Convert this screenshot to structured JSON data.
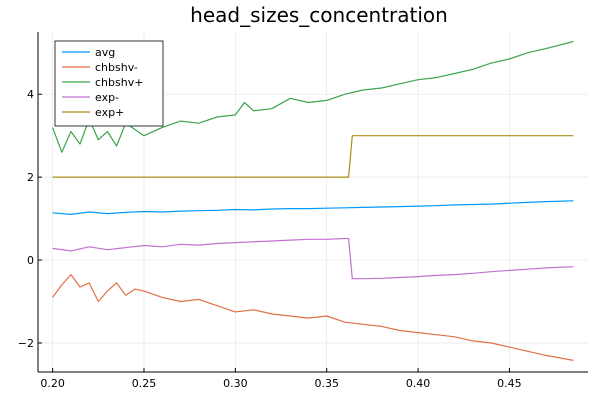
{
  "chart_data": {
    "type": "line",
    "title": "head_sizes_concentration",
    "xlabel": "",
    "ylabel": "",
    "xlim": [
      0.192,
      0.493
    ],
    "ylim": [
      -2.7,
      5.5
    ],
    "xticks": [
      0.2,
      0.25,
      0.3,
      0.35,
      0.4,
      0.45
    ],
    "xtick_labels": [
      "0.20",
      "0.25",
      "0.30",
      "0.35",
      "0.40",
      "0.45"
    ],
    "yticks": [
      -2,
      0,
      2,
      4
    ],
    "ytick_labels": [
      "−2",
      "0",
      "2",
      "4"
    ],
    "grid": true,
    "legend_position": "top-left",
    "series": [
      {
        "name": "avg",
        "color": "#009AFA",
        "x": [
          0.2,
          0.21,
          0.22,
          0.23,
          0.24,
          0.25,
          0.26,
          0.27,
          0.28,
          0.29,
          0.3,
          0.31,
          0.32,
          0.33,
          0.34,
          0.35,
          0.36,
          0.37,
          0.38,
          0.39,
          0.4,
          0.41,
          0.42,
          0.43,
          0.44,
          0.45,
          0.46,
          0.47,
          0.485
        ],
        "y": [
          1.14,
          1.1,
          1.16,
          1.12,
          1.15,
          1.17,
          1.16,
          1.18,
          1.19,
          1.2,
          1.22,
          1.21,
          1.23,
          1.24,
          1.24,
          1.25,
          1.26,
          1.27,
          1.28,
          1.29,
          1.3,
          1.31,
          1.33,
          1.34,
          1.35,
          1.37,
          1.39,
          1.41,
          1.43
        ]
      },
      {
        "name": "chbshv-",
        "color": "#E36F47",
        "x": [
          0.2,
          0.205,
          0.21,
          0.215,
          0.22,
          0.225,
          0.23,
          0.235,
          0.24,
          0.245,
          0.25,
          0.26,
          0.27,
          0.28,
          0.29,
          0.3,
          0.31,
          0.32,
          0.33,
          0.34,
          0.35,
          0.36,
          0.37,
          0.38,
          0.39,
          0.4,
          0.41,
          0.42,
          0.43,
          0.44,
          0.45,
          0.46,
          0.47,
          0.485
        ],
        "y": [
          -0.9,
          -0.6,
          -0.35,
          -0.65,
          -0.55,
          -1.0,
          -0.75,
          -0.55,
          -0.85,
          -0.7,
          -0.75,
          -0.9,
          -1.0,
          -0.95,
          -1.1,
          -1.25,
          -1.2,
          -1.3,
          -1.35,
          -1.4,
          -1.35,
          -1.5,
          -1.55,
          -1.6,
          -1.7,
          -1.75,
          -1.8,
          -1.85,
          -1.95,
          -2.0,
          -2.1,
          -2.2,
          -2.3,
          -2.42
        ]
      },
      {
        "name": "chbshv+",
        "color": "#3EA44E",
        "x": [
          0.2,
          0.205,
          0.21,
          0.215,
          0.22,
          0.225,
          0.23,
          0.235,
          0.24,
          0.25,
          0.26,
          0.27,
          0.28,
          0.29,
          0.3,
          0.305,
          0.31,
          0.32,
          0.33,
          0.34,
          0.35,
          0.36,
          0.37,
          0.38,
          0.39,
          0.4,
          0.41,
          0.42,
          0.43,
          0.44,
          0.45,
          0.46,
          0.47,
          0.485
        ],
        "y": [
          3.2,
          2.6,
          3.1,
          2.8,
          3.4,
          2.9,
          3.1,
          2.75,
          3.3,
          3.0,
          3.2,
          3.35,
          3.3,
          3.45,
          3.5,
          3.8,
          3.6,
          3.65,
          3.9,
          3.8,
          3.85,
          4.0,
          4.1,
          4.15,
          4.25,
          4.35,
          4.4,
          4.5,
          4.6,
          4.75,
          4.85,
          5.0,
          5.1,
          5.27
        ]
      },
      {
        "name": "exp-",
        "color": "#C271D2",
        "x": [
          0.2,
          0.21,
          0.22,
          0.23,
          0.24,
          0.25,
          0.26,
          0.27,
          0.28,
          0.29,
          0.3,
          0.31,
          0.32,
          0.33,
          0.34,
          0.35,
          0.36,
          0.362,
          0.364,
          0.37,
          0.38,
          0.39,
          0.4,
          0.41,
          0.42,
          0.43,
          0.44,
          0.45,
          0.46,
          0.47,
          0.485
        ],
        "y": [
          0.28,
          0.22,
          0.32,
          0.25,
          0.3,
          0.35,
          0.32,
          0.38,
          0.36,
          0.4,
          0.42,
          0.44,
          0.46,
          0.48,
          0.5,
          0.5,
          0.52,
          0.52,
          -0.45,
          -0.45,
          -0.44,
          -0.42,
          -0.4,
          -0.37,
          -0.35,
          -0.32,
          -0.28,
          -0.25,
          -0.22,
          -0.19,
          -0.16
        ]
      },
      {
        "name": "exp+",
        "color": "#AC8D18",
        "x": [
          0.2,
          0.362,
          0.364,
          0.485
        ],
        "y": [
          2.0,
          2.0,
          3.0,
          3.0
        ]
      }
    ]
  }
}
